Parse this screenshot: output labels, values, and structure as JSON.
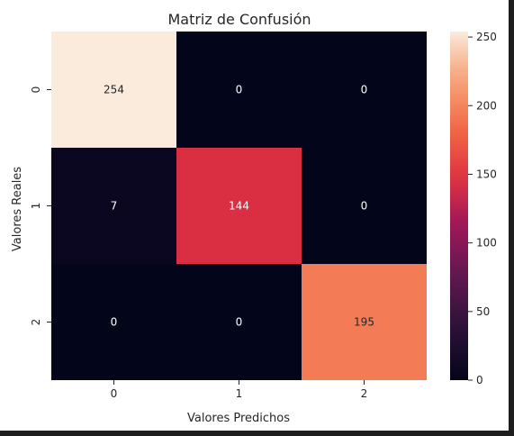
{
  "chart_data": {
    "type": "heatmap",
    "title": "Matriz de Confusión",
    "xlabel": "Valores Predichos",
    "ylabel": "Valores Reales",
    "x_categories": [
      "0",
      "1",
      "2"
    ],
    "y_categories": [
      "0",
      "1",
      "2"
    ],
    "values": [
      [
        254,
        0,
        0
      ],
      [
        7,
        144,
        0
      ],
      [
        0,
        0,
        195
      ]
    ],
    "colorbar": {
      "range": [
        0,
        254
      ],
      "ticks": [
        "0",
        "50",
        "100",
        "150",
        "200",
        "250"
      ]
    },
    "colormap": "rocket",
    "grid": false
  }
}
